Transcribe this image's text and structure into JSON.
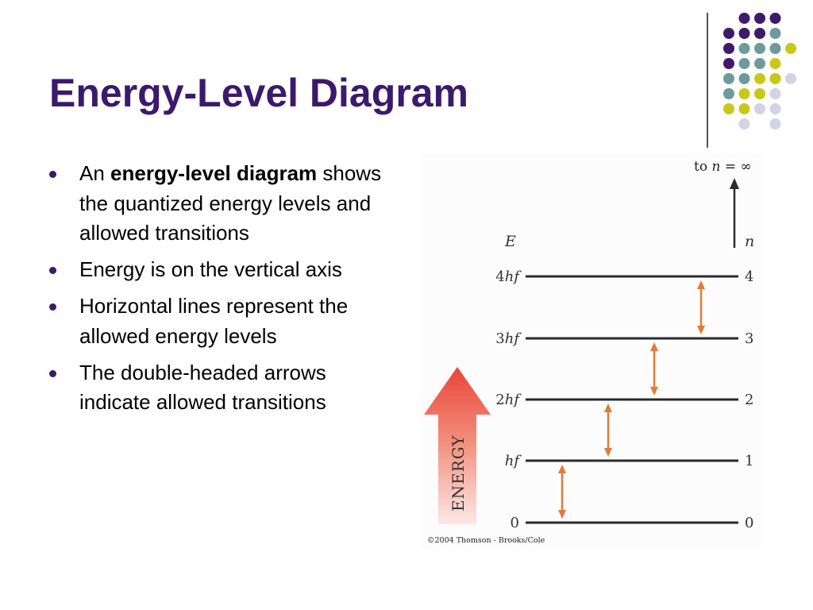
{
  "slide": {
    "title": "Energy-Level Diagram",
    "bullets": [
      {
        "before": "An ",
        "bold": "energy-level diagram",
        "after": " shows the quantized energy levels and allowed transitions"
      },
      {
        "text": "Energy is on the vertical axis"
      },
      {
        "text": "Horizontal lines represent the allowed energy levels"
      },
      {
        "text": "The double-headed arrows indicate allowed transitions"
      }
    ]
  },
  "diagram": {
    "top_label": {
      "prefix": "to ",
      "n": "n",
      "rest": " = ∞"
    },
    "energy_axis_label": "E",
    "level_axis_label": "n",
    "levels": [
      {
        "n": "0",
        "energy_prefix": "0",
        "energy_italic": ""
      },
      {
        "n": "1",
        "energy_prefix": "",
        "energy_italic": "hf"
      },
      {
        "n": "2",
        "energy_prefix": "2",
        "energy_italic": "hf"
      },
      {
        "n": "3",
        "energy_prefix": "3",
        "energy_italic": "hf"
      },
      {
        "n": "4",
        "energy_prefix": "4",
        "energy_italic": "hf"
      }
    ],
    "transitions": [
      {
        "from": "0",
        "to": "1"
      },
      {
        "from": "1",
        "to": "2"
      },
      {
        "from": "2",
        "to": "3"
      },
      {
        "from": "3",
        "to": "4"
      }
    ],
    "energy_arrow_label": "ENERGY",
    "copyright": "©2004 Thomson - Brooks/Cole",
    "colors": {
      "energy_arrow": "#e9453a",
      "transition": "#e07b39",
      "level_line": "#2b2b2b"
    }
  },
  "decoration": {
    "colors": {
      "purple": "#3f1a6b",
      "teal": "#6f9a9a",
      "lime": "#c8c81a",
      "lavender": "#d3d2e6"
    }
  }
}
